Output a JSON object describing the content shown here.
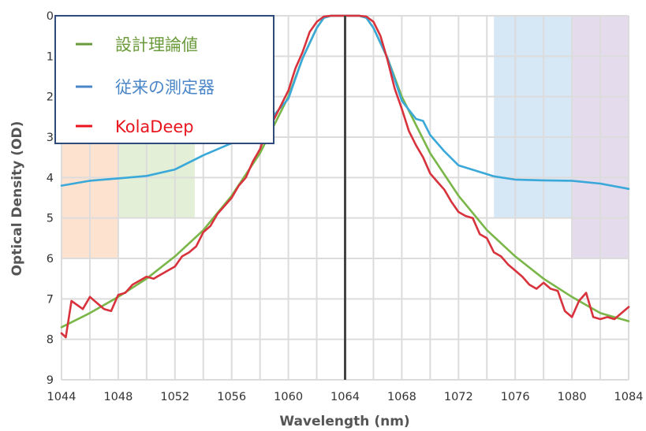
{
  "chart_data": {
    "type": "line",
    "xlabel": "Wavelength (nm)",
    "ylabel": "Optical Density (OD)",
    "xlim": [
      1044,
      1084
    ],
    "ylim": [
      9,
      0
    ],
    "y_inverted": true,
    "x_ticks": [
      1044,
      1048,
      1052,
      1056,
      1060,
      1064,
      1068,
      1072,
      1076,
      1080,
      1084
    ],
    "y_ticks": [
      0,
      1,
      2,
      3,
      4,
      5,
      6,
      7,
      8,
      9
    ],
    "grid": true,
    "legend_placement": "top-left",
    "center_line_x": 1064,
    "bands": [
      {
        "x0": 1044,
        "x1": 1048,
        "y0": 3,
        "y1": 6,
        "color": "#fde3cf"
      },
      {
        "x0": 1048,
        "x1": 1053.4,
        "y0": 3,
        "y1": 5,
        "color": "#e3efd6"
      },
      {
        "x0": 1074.5,
        "x1": 1080,
        "y0": 0,
        "y1": 5,
        "color": "#d6e7f6"
      },
      {
        "x0": 1080,
        "x1": 1084,
        "y0": 0,
        "y1": 6,
        "color": "#e4dcec"
      }
    ],
    "series": [
      {
        "name": "設計理論値",
        "color": "#7ab648",
        "x": [
          1044,
          1046,
          1048,
          1050,
          1052,
          1054,
          1056,
          1058,
          1060,
          1061,
          1062,
          1062.5,
          1063,
          1064,
          1065,
          1065.5,
          1066,
          1067,
          1068,
          1070,
          1072,
          1074,
          1076,
          1078,
          1080,
          1082,
          1084
        ],
        "values": [
          7.7,
          7.35,
          6.95,
          6.5,
          5.95,
          5.3,
          4.45,
          3.4,
          2.0,
          1.05,
          0.3,
          0.05,
          0.0,
          0.0,
          0.0,
          0.05,
          0.3,
          1.05,
          2.0,
          3.4,
          4.45,
          5.3,
          5.95,
          6.5,
          6.95,
          7.35,
          7.55
        ]
      },
      {
        "name": "従来の測定器",
        "color": "#3aa8d8",
        "x": [
          1044,
          1046,
          1048,
          1050,
          1052,
          1054,
          1056,
          1058,
          1059,
          1060,
          1061,
          1062,
          1062.5,
          1063,
          1064,
          1065,
          1065.5,
          1066,
          1067,
          1068,
          1069,
          1069.5,
          1070,
          1071,
          1072,
          1074.5,
          1076,
          1078,
          1080,
          1082,
          1084
        ],
        "values": [
          4.2,
          4.08,
          4.02,
          3.96,
          3.8,
          3.45,
          3.15,
          2.85,
          2.45,
          2.05,
          1.05,
          0.3,
          0.05,
          0.0,
          0.0,
          0.0,
          0.05,
          0.3,
          1.05,
          2.1,
          2.55,
          2.6,
          2.95,
          3.35,
          3.7,
          3.97,
          4.05,
          4.07,
          4.08,
          4.15,
          4.28
        ]
      },
      {
        "name": "KolaDeep",
        "color": "#d8323c",
        "x": [
          1044,
          1044.3,
          1044.7,
          1045.5,
          1046,
          1046.5,
          1047,
          1047.5,
          1048,
          1048.5,
          1049,
          1049.5,
          1050,
          1050.5,
          1051,
          1051.5,
          1052,
          1052.5,
          1053,
          1053.5,
          1054,
          1054.5,
          1055,
          1055.5,
          1056,
          1056.5,
          1057,
          1057.5,
          1058,
          1058.5,
          1059,
          1059.5,
          1060,
          1060.5,
          1061,
          1061.5,
          1062,
          1062.5,
          1063,
          1064,
          1065,
          1065.5,
          1066,
          1066.5,
          1067,
          1067.5,
          1068,
          1068.5,
          1069,
          1069.5,
          1070,
          1070.5,
          1071,
          1071.5,
          1072,
          1072.5,
          1073,
          1073.5,
          1074,
          1074.5,
          1075,
          1075.5,
          1076,
          1076.5,
          1077,
          1077.5,
          1078,
          1078.5,
          1079,
          1079.5,
          1080,
          1080.5,
          1081,
          1081.5,
          1082,
          1082.5,
          1083,
          1083.5,
          1084
        ],
        "values": [
          7.85,
          7.95,
          7.05,
          7.25,
          6.95,
          7.1,
          7.25,
          7.3,
          6.9,
          6.85,
          6.65,
          6.55,
          6.45,
          6.5,
          6.4,
          6.3,
          6.2,
          5.95,
          5.85,
          5.7,
          5.35,
          5.2,
          4.9,
          4.7,
          4.5,
          4.2,
          4.0,
          3.6,
          3.3,
          2.8,
          2.55,
          2.2,
          1.85,
          1.3,
          0.9,
          0.4,
          0.15,
          0.02,
          0.0,
          0.0,
          0.0,
          0.02,
          0.15,
          0.5,
          1.1,
          1.8,
          2.3,
          2.85,
          3.2,
          3.5,
          3.9,
          4.1,
          4.3,
          4.6,
          4.85,
          4.95,
          5.0,
          5.4,
          5.5,
          5.85,
          5.95,
          6.15,
          6.3,
          6.45,
          6.65,
          6.75,
          6.6,
          6.75,
          6.8,
          7.3,
          7.45,
          7.05,
          6.85,
          7.45,
          7.5,
          7.45,
          7.5,
          7.35,
          7.2
        ]
      }
    ]
  },
  "legend": {
    "items": [
      {
        "label": "設計理論値",
        "color": "#6a9a3a"
      },
      {
        "label": "従来の測定器",
        "color": "#4a86c8"
      },
      {
        "label": "KolaDeep",
        "color": "#e8141e"
      }
    ]
  }
}
